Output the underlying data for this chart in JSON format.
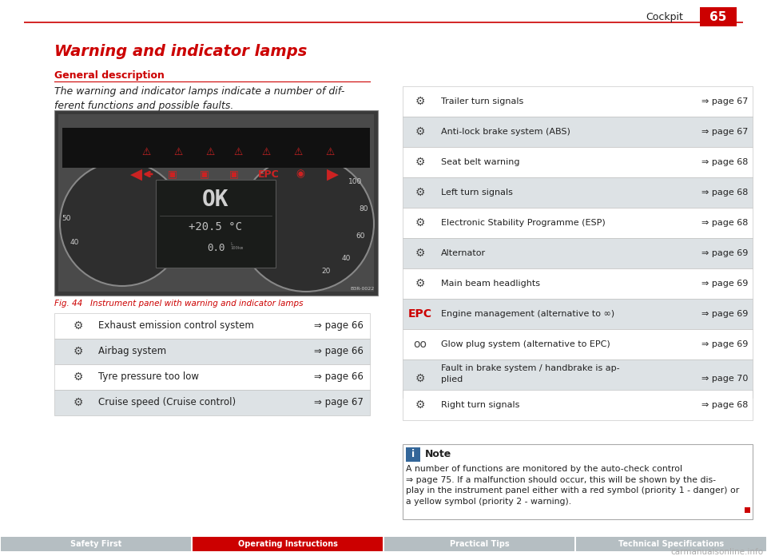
{
  "page_bg": "#ffffff",
  "header_line_color": "#cc0000",
  "header_text": "Cockpit",
  "header_page_num": "65",
  "header_box_color": "#cc0000",
  "title": "Warning and indicator lamps",
  "title_color": "#cc0000",
  "section_label": "General description",
  "section_label_color": "#cc0000",
  "body_text": "The warning and indicator lamps indicate a number of dif-\nferent functions and possible faults.",
  "fig_caption": "Fig. 44   Instrument panel with warning and indicator lamps",
  "left_table_rows": [
    {
      "label": "Exhaust emission control system",
      "page": "⇒ page 66",
      "shaded": false
    },
    {
      "label": "Airbag system",
      "page": "⇒ page 66",
      "shaded": true
    },
    {
      "label": "Tyre pressure too low",
      "page": "⇒ page 66",
      "shaded": false
    },
    {
      "label": "Cruise speed (Cruise control)",
      "page": "⇒ page 67",
      "shaded": true
    }
  ],
  "right_table_rows": [
    {
      "label": "Trailer turn signals",
      "page": "⇒ page 67",
      "shaded": false
    },
    {
      "label": "Anti-lock brake system (ABS)",
      "page": "⇒ page 67",
      "shaded": true
    },
    {
      "label": "Seat belt warning",
      "page": "⇒ page 68",
      "shaded": false
    },
    {
      "label": "Left turn signals",
      "page": "⇒ page 68",
      "shaded": true
    },
    {
      "label": "Electronic Stability Programme (ESP)",
      "page": "⇒ page 68",
      "shaded": false
    },
    {
      "label": "Alternator",
      "page": "⇒ page 69",
      "shaded": true
    },
    {
      "label": "Main beam headlights",
      "page": "⇒ page 69",
      "shaded": false
    },
    {
      "label": "Engine management (alternative to ∞)",
      "page": "⇒ page 69",
      "shaded": true,
      "epc": true
    },
    {
      "label": "Glow plug system (alternative to EPC)",
      "page": "⇒ page 69",
      "shaded": false,
      "glow": true
    },
    {
      "label": "Fault in brake system / handbrake is ap-\nplied",
      "page": "⇒ page 70",
      "shaded": true,
      "two_line": true
    },
    {
      "label": "Right turn signals",
      "page": "⇒ page 68",
      "shaded": false
    }
  ],
  "note_title": "Note",
  "note_text": "A number of functions are monitored by the auto-check control\n⇒ page 75. If a malfunction should occur, this will be shown by the dis-\nplay in the instrument panel either with a red symbol (priority 1 - danger) or\na yellow symbol (priority 2 - warning).",
  "nav_sections": [
    "Safety First",
    "Operating Instructions",
    "Practical Tips",
    "Technical Specifications"
  ],
  "nav_active": "Operating Instructions",
  "nav_bg": "#b5bec2",
  "nav_active_bg": "#cc0000",
  "nav_text_color": "#ffffff",
  "shaded_row_color": "#dde2e5",
  "note_border_color": "#888888",
  "note_icon_bg": "#336699"
}
